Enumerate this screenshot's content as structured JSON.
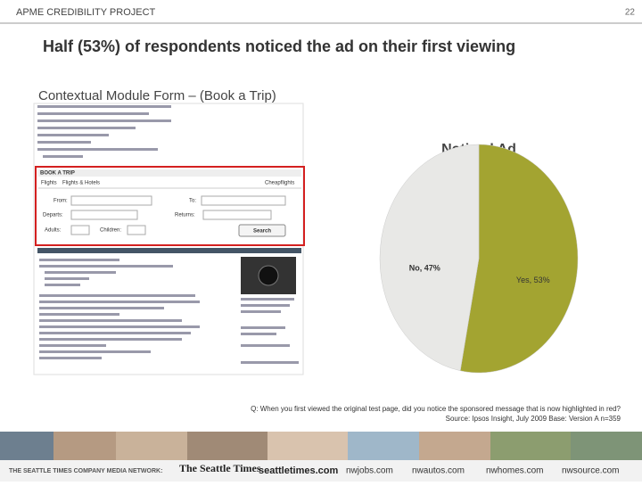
{
  "header": {
    "project": "APME CREDIBILITY PROJECT",
    "page": "22",
    "title": "Half (53%) of respondents noticed the ad on their first viewing",
    "subtitle": "Contextual Module Form – (Book a Trip)"
  },
  "screenshot": {
    "module_title": "BOOK A TRIP",
    "tabs": [
      "Flights",
      "Flights & Hotels"
    ],
    "brand": "Cheapflights",
    "fields": [
      "From:",
      "To:",
      "Departs:",
      "Returns:",
      "Adults:",
      "Children:"
    ],
    "button": "Search"
  },
  "chart_data": {
    "type": "pie",
    "title": "Noticed Ad",
    "categories": [
      "Yes",
      "No"
    ],
    "values": [
      53,
      47
    ],
    "value_labels": [
      "Yes, 53%",
      "No, 47%"
    ],
    "colors": [
      "#a3a431",
      "#e8e8e6"
    ]
  },
  "notes": [
    "Q: When you first viewed the original test page, did you notice the sponsored message that is now highlighted in red?",
    "Source: Ipsos Insight, July 2009 Base: Version A n=359"
  ],
  "footer": {
    "network": "THE SEATTLE TIMES COMPANY MEDIA NETWORK:",
    "brands": [
      "The Seattle Times",
      "seattletimes.com",
      "nwjobs.com",
      "nwautos.com",
      "nwhomes.com",
      "nwsource.com"
    ]
  }
}
